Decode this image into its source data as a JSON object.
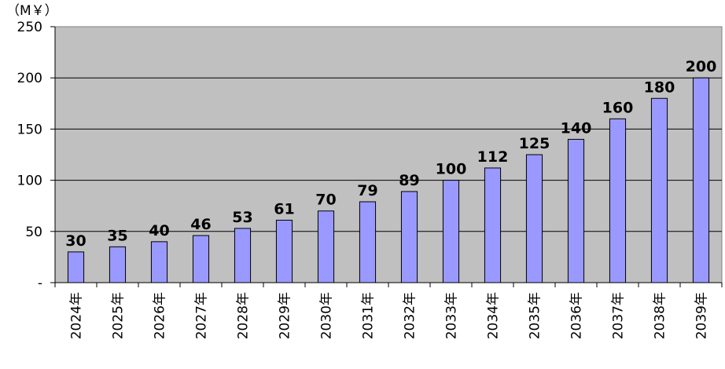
{
  "chart_data": {
    "type": "bar",
    "unit_label": "（M￥）",
    "categories": [
      "2024年",
      "2025年",
      "2026年",
      "2027年",
      "2028年",
      "2029年",
      "2030年",
      "2031年",
      "2032年",
      "2033年",
      "2034年",
      "2035年",
      "2036年",
      "2037年",
      "2038年",
      "2039年"
    ],
    "series": [
      {
        "values": [
          30,
          35,
          40,
          46,
          53,
          61,
          70,
          79,
          89,
          100,
          112,
          125,
          140,
          160,
          180,
          200
        ]
      }
    ],
    "data_labels": [
      "30",
      "35",
      "40",
      "46",
      "53",
      "61",
      "70",
      "79",
      "89",
      "100",
      "112",
      "125",
      "140",
      "160",
      "180",
      "200"
    ],
    "ylim": [
      0,
      250
    ],
    "y_ticks": [
      0,
      50,
      100,
      150,
      200,
      250
    ],
    "y_tick_labels": [
      "-",
      "50",
      "100",
      "150",
      "200",
      "250"
    ],
    "grid": true,
    "colors": {
      "bar_fill": "#9999ff",
      "bar_stroke": "#000000",
      "plot_background": "#c0c0c0",
      "gridline": "#000000"
    }
  }
}
